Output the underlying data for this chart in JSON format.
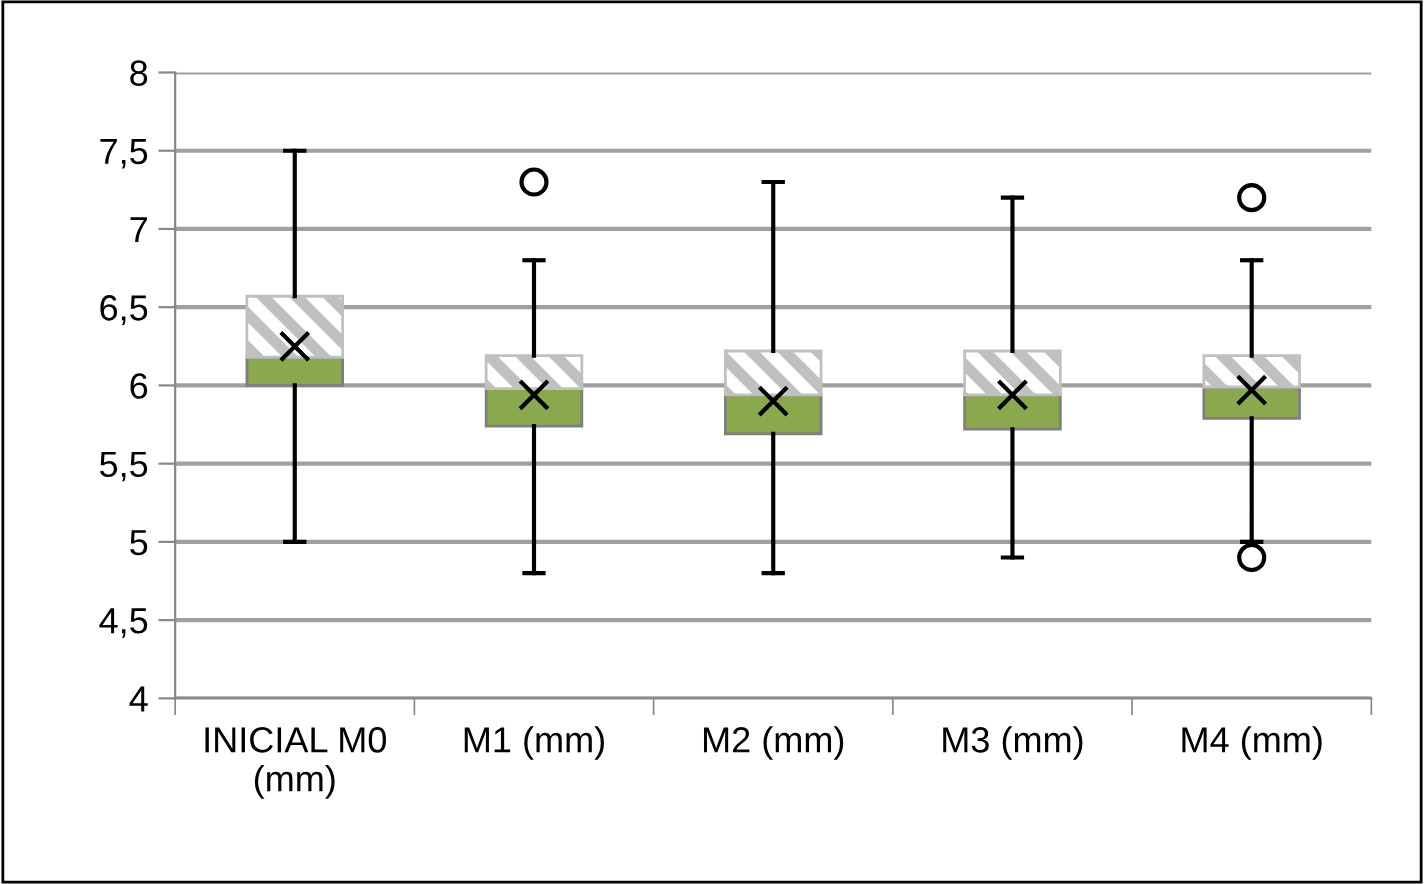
{
  "chart_data": {
    "type": "box",
    "categories": [
      "INICIAL M0 (mm)",
      "M1 (mm)",
      "M2 (mm)",
      "M3 (mm)",
      "M4 (mm)"
    ],
    "series": [
      {
        "color": "#8aa84e",
        "boxes": [
          {
            "low": 5.0,
            "q1": 6.0,
            "median": 6.18,
            "q3": 6.57,
            "high": 7.5,
            "mean": 6.25
          },
          {
            "low": 4.8,
            "q1": 5.74,
            "median": 5.98,
            "q3": 6.19,
            "high": 6.8,
            "mean": 5.94,
            "outliers": [
              7.3
            ]
          },
          {
            "low": 4.8,
            "q1": 5.69,
            "median": 5.94,
            "q3": 6.22,
            "high": 7.3,
            "mean": 5.9
          },
          {
            "low": 4.9,
            "q1": 5.72,
            "median": 5.94,
            "q3": 6.22,
            "high": 7.2,
            "mean": 5.94
          },
          {
            "low": 5.0,
            "q1": 5.79,
            "median": 5.99,
            "q3": 6.19,
            "high": 6.8,
            "mean": 5.97,
            "outliers": [
              7.2,
              4.9
            ]
          }
        ]
      }
    ],
    "ylim": [
      4,
      8
    ],
    "yticks": [
      4,
      {
        "value": 4.5,
        "label": "4,5"
      },
      5,
      {
        "value": 5.5,
        "label": "5,5"
      },
      6,
      {
        "value": 6.5,
        "label": "6,5"
      },
      7,
      {
        "value": 7.5,
        "label": "7,5"
      },
      8
    ],
    "grid": "y",
    "legend": false
  }
}
